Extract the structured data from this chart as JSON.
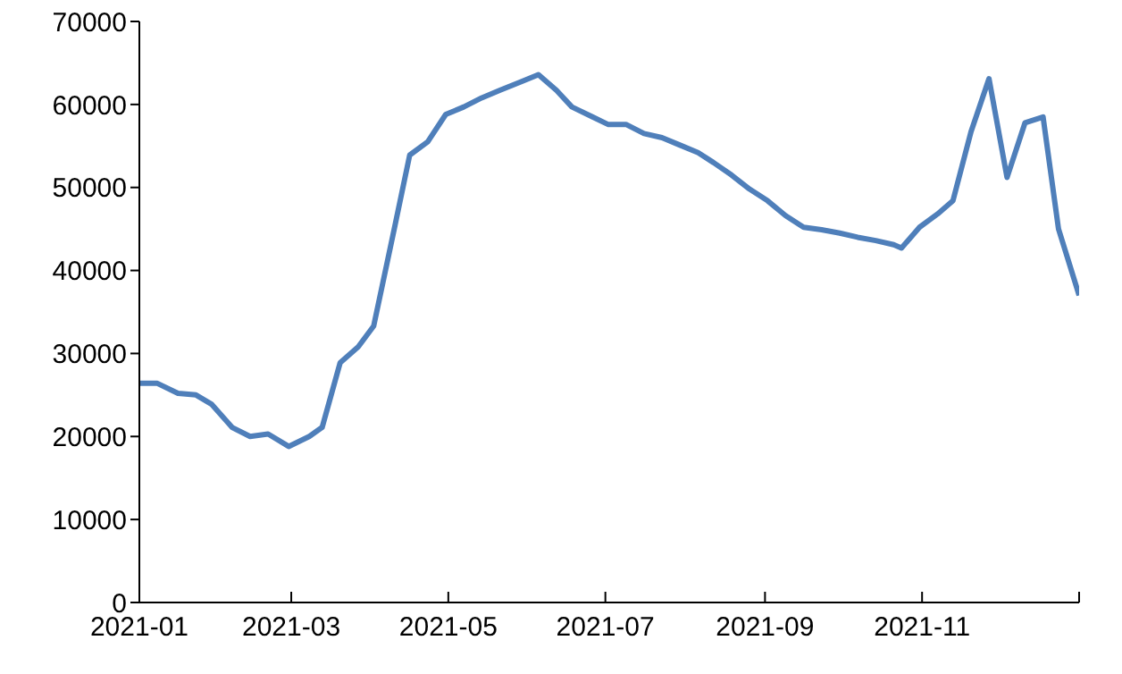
{
  "chart_data": {
    "type": "line",
    "x": [
      "2021-01-01",
      "2021-01-08",
      "2021-01-16",
      "2021-01-23",
      "2021-01-29",
      "2021-02-06",
      "2021-02-13",
      "2021-02-20",
      "2021-02-28",
      "2021-03-08",
      "2021-03-13",
      "2021-03-20",
      "2021-03-27",
      "2021-04-02",
      "2021-04-10",
      "2021-04-16",
      "2021-04-23",
      "2021-04-30",
      "2021-05-07",
      "2021-05-14",
      "2021-05-21",
      "2021-05-29",
      "2021-06-05",
      "2021-06-12",
      "2021-06-18",
      "2021-06-26",
      "2021-07-02",
      "2021-07-09",
      "2021-07-16",
      "2021-07-23",
      "2021-07-30",
      "2021-08-06",
      "2021-08-12",
      "2021-08-19",
      "2021-08-26",
      "2021-09-02",
      "2021-09-09",
      "2021-09-16",
      "2021-09-23",
      "2021-09-30",
      "2021-10-07",
      "2021-10-14",
      "2021-10-21",
      "2021-10-24",
      "2021-10-31",
      "2021-11-07",
      "2021-11-13",
      "2021-11-20",
      "2021-11-27",
      "2021-12-04",
      "2021-12-11",
      "2021-12-18",
      "2021-12-24",
      "2022-01-01"
    ],
    "series": [
      {
        "color": "#4f7fba",
        "values": [
          26400,
          26400,
          25200,
          25000,
          23900,
          21100,
          20000,
          20300,
          18800,
          20000,
          21100,
          28900,
          30800,
          33300,
          45000,
          53900,
          55500,
          58800,
          59700,
          60800,
          61700,
          62700,
          63600,
          61700,
          59700,
          58500,
          57600,
          57600,
          56500,
          56000,
          55100,
          54200,
          53000,
          51500,
          49800,
          48400,
          46600,
          45200,
          44900,
          44500,
          44000,
          43600,
          43100,
          42700,
          45200,
          46800,
          48400,
          56700,
          63100,
          51200,
          57800,
          58500,
          45000,
          37000
        ]
      }
    ],
    "xlim": [
      "2021-01-01",
      "2022-01-01"
    ],
    "xticks": [
      {
        "value": "2021-01",
        "label": "2021-01"
      },
      {
        "value": "2021-03",
        "label": "2021-03"
      },
      {
        "value": "2021-05",
        "label": "2021-05"
      },
      {
        "value": "2021-07",
        "label": "2021-07"
      },
      {
        "value": "2021-09",
        "label": "2021-09"
      },
      {
        "value": "2021-11",
        "label": "2021-11"
      },
      {
        "value": "2022-01",
        "label": null
      }
    ],
    "ylim": [
      0,
      70000
    ],
    "yticks": [
      0,
      10000,
      20000,
      30000,
      40000,
      50000,
      60000,
      70000
    ],
    "grid": false,
    "legend": false,
    "marker": "none",
    "line_style": "solid"
  }
}
